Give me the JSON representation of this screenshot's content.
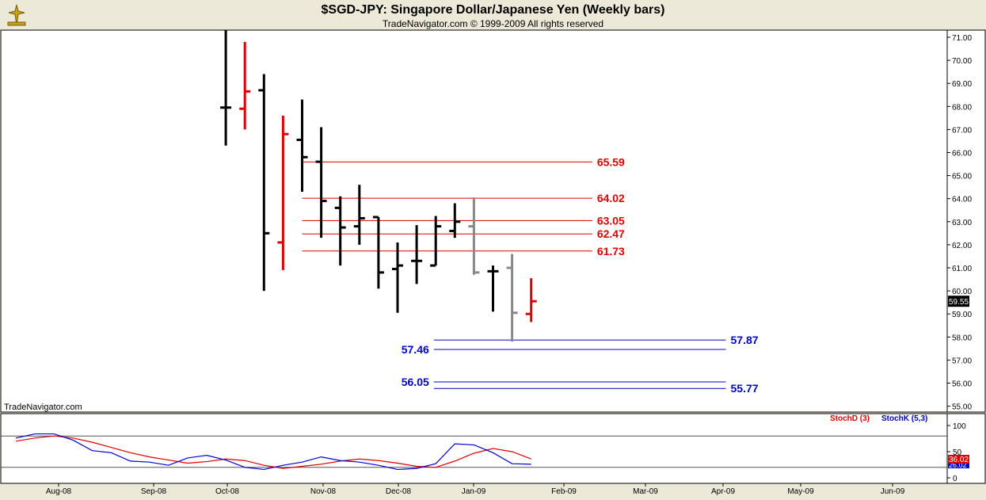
{
  "title": "$SGD-JPY:  Singapore Dollar/Japanese Yen  (Weekly bars)",
  "subtitle": "TradeNavigator.com © 1999-2009 All rights reserved",
  "watermark": "TradeNavigator.com",
  "colors": {
    "red": "#dd0000",
    "blue": "#0000cc",
    "black": "#000000",
    "grey": "#888888",
    "bg": "#ffffff",
    "frame": "#ece9d8"
  },
  "chart_data": [
    {
      "type": "ohlc",
      "y_ticks": [
        "71.00",
        "70.00",
        "69.00",
        "68.00",
        "67.00",
        "66.00",
        "65.00",
        "64.00",
        "63.00",
        "62.00",
        "61.00",
        "60.00",
        "59.00",
        "58.00",
        "57.00",
        "56.00",
        "55.00"
      ],
      "ylim": [
        54.8,
        71.5
      ],
      "x_ticks": [
        "Aug-08",
        "Sep-08",
        "Oct-08",
        "Nov-08",
        "Dec-08",
        "Jan-09",
        "Feb-09",
        "Mar-09",
        "Apr-09",
        "May-09",
        "Jun-09"
      ],
      "current_price": "59.55",
      "bars": [
        {
          "week": 11,
          "open": 67.95,
          "high": 71.5,
          "low": 66.3,
          "close": 67.95,
          "color": "black"
        },
        {
          "week": 12,
          "open": 67.9,
          "high": 70.8,
          "low": 67.0,
          "close": 68.65,
          "color": "red"
        },
        {
          "week": 13,
          "open": 68.7,
          "high": 69.4,
          "low": 60.0,
          "close": 62.5,
          "color": "black"
        },
        {
          "week": 14,
          "open": 62.1,
          "high": 67.6,
          "low": 60.9,
          "close": 66.8,
          "color": "red"
        },
        {
          "week": 15,
          "open": 66.55,
          "high": 68.3,
          "low": 64.3,
          "close": 65.8,
          "color": "black"
        },
        {
          "week": 16,
          "open": 65.6,
          "high": 67.1,
          "low": 62.3,
          "close": 63.9,
          "color": "black"
        },
        {
          "week": 17,
          "open": 63.6,
          "high": 64.1,
          "low": 61.1,
          "close": 62.75,
          "color": "black"
        },
        {
          "week": 18,
          "open": 62.8,
          "high": 64.6,
          "low": 62.0,
          "close": 63.15,
          "color": "black"
        },
        {
          "week": 19,
          "open": 63.2,
          "high": 63.2,
          "low": 60.1,
          "close": 60.8,
          "color": "black"
        },
        {
          "week": 20,
          "open": 60.95,
          "high": 62.1,
          "low": 59.05,
          "close": 61.1,
          "color": "black"
        },
        {
          "week": 21,
          "open": 61.3,
          "high": 62.85,
          "low": 60.3,
          "close": 61.3,
          "color": "black"
        },
        {
          "week": 22,
          "open": 61.1,
          "high": 63.25,
          "low": 61.1,
          "close": 62.8,
          "color": "black"
        },
        {
          "week": 23,
          "open": 62.6,
          "high": 63.8,
          "low": 62.3,
          "close": 63.0,
          "color": "black"
        },
        {
          "week": 24,
          "open": 62.8,
          "high": 64.05,
          "low": 60.7,
          "close": 60.8,
          "color": "grey"
        },
        {
          "week": 25,
          "open": 60.85,
          "high": 61.1,
          "low": 59.1,
          "close": 60.85,
          "color": "black"
        },
        {
          "week": 26,
          "open": 61.0,
          "high": 61.6,
          "low": 57.8,
          "close": 59.05,
          "color": "grey"
        },
        {
          "week": 27,
          "open": 59.0,
          "high": 60.55,
          "low": 58.65,
          "close": 59.55,
          "color": "red"
        }
      ],
      "levels": [
        {
          "value": 65.59,
          "label": "65.59",
          "color": "red",
          "from_week": 15,
          "to_week": 30.2,
          "label_side": "right"
        },
        {
          "value": 64.02,
          "label": "64.02",
          "color": "red",
          "from_week": 15,
          "to_week": 30.2,
          "label_side": "right"
        },
        {
          "value": 63.05,
          "label": "63.05",
          "color": "red",
          "from_week": 15,
          "to_week": 30.2,
          "label_side": "right"
        },
        {
          "value": 62.47,
          "label": "62.47",
          "color": "red",
          "from_week": 15,
          "to_week": 30.2,
          "label_side": "right"
        },
        {
          "value": 61.73,
          "label": "61.73",
          "color": "red",
          "from_week": 15,
          "to_week": 30.2,
          "label_side": "right"
        },
        {
          "value": 57.87,
          "label": "57.87",
          "color": "blue",
          "from_week": 21.9,
          "to_week": 37.2,
          "label_side": "right"
        },
        {
          "value": 57.46,
          "label": "57.46",
          "color": "blue",
          "from_week": 21.9,
          "to_week": 37.2,
          "label_side": "left"
        },
        {
          "value": 56.05,
          "label": "56.05",
          "color": "blue",
          "from_week": 21.9,
          "to_week": 37.2,
          "label_side": "left"
        },
        {
          "value": 55.77,
          "label": "55.77",
          "color": "blue",
          "from_week": 21.9,
          "to_week": 37.2,
          "label_side": "right"
        }
      ]
    },
    {
      "type": "line",
      "legend": [
        {
          "name": "StochD (3)",
          "color": "red"
        },
        {
          "name": "StochK (5,3)",
          "color": "blue"
        }
      ],
      "y_ticks": [
        "100",
        "50",
        "0"
      ],
      "ylim": [
        -8,
        122
      ],
      "reference_lines": [
        80,
        20
      ],
      "current_values": [
        "36.02",
        "26.02"
      ],
      "x": [
        0,
        1,
        2,
        3,
        4,
        5,
        6,
        7,
        8,
        9,
        10,
        11,
        12,
        13,
        14,
        15,
        16,
        17,
        18,
        19,
        20,
        21,
        22,
        23,
        24,
        25,
        26,
        27
      ],
      "series": [
        {
          "name": "StochD (3)",
          "color": "red",
          "values": [
            70,
            76,
            80,
            76,
            68,
            58,
            48,
            40,
            34,
            28,
            31,
            36,
            33,
            24,
            18,
            22,
            26,
            32,
            36,
            33,
            28,
            22,
            20,
            32,
            47,
            56,
            50,
            36
          ]
        },
        {
          "name": "StochK (5,3)",
          "color": "blue",
          "values": [
            76,
            84,
            84,
            72,
            52,
            48,
            32,
            30,
            24,
            38,
            43,
            34,
            20,
            16,
            24,
            30,
            40,
            33,
            30,
            24,
            16,
            18,
            27,
            65,
            63,
            48,
            27,
            26
          ]
        }
      ]
    }
  ]
}
